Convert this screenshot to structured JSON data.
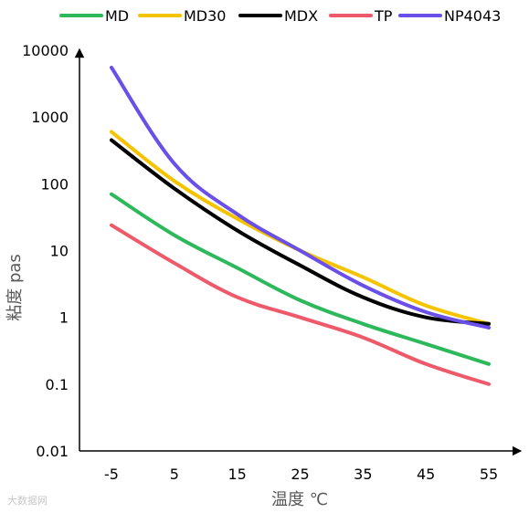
{
  "chart_data": {
    "type": "line",
    "title": "",
    "xlabel": "温度 ℃",
    "ylabel": "粘度 pas",
    "x": [
      -5,
      5,
      15,
      25,
      35,
      45,
      55
    ],
    "xticks": [
      "-5",
      "5",
      "15",
      "25",
      "35",
      "45",
      "55"
    ],
    "yscale": "log",
    "ylim": [
      0.01,
      10000
    ],
    "yticks": [
      "0.01",
      "0.1",
      "1",
      "10",
      "100",
      "1000",
      "10000"
    ],
    "yticks_values": [
      0.01,
      0.1,
      1,
      10,
      100,
      1000,
      10000
    ],
    "grid": false,
    "legend_position": "top",
    "series": [
      {
        "name": "MD",
        "color": "#2EB85C",
        "values": [
          70,
          17,
          5.5,
          1.8,
          0.8,
          0.4,
          0.2
        ]
      },
      {
        "name": "MD30",
        "color": "#F5C400",
        "values": [
          600,
          110,
          30,
          10,
          4,
          1.5,
          0.8
        ]
      },
      {
        "name": "MDX",
        "color": "#000000",
        "values": [
          450,
          85,
          20,
          6,
          2,
          1,
          0.8
        ]
      },
      {
        "name": "TP",
        "color": "#EE5A6A",
        "values": [
          24,
          6.5,
          2,
          1,
          0.5,
          0.2,
          0.1
        ]
      },
      {
        "name": "NP4043",
        "color": "#6A4FE8",
        "values": [
          5500,
          200,
          35,
          10,
          3,
          1.2,
          0.7
        ]
      }
    ]
  },
  "watermark": "大数据网"
}
